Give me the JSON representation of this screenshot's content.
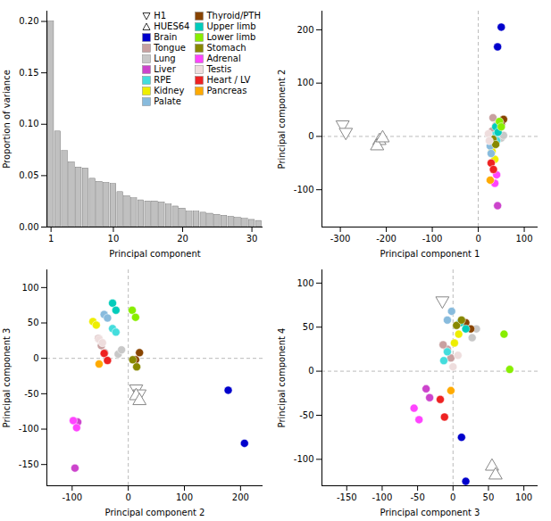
{
  "chart_data": [
    {
      "type": "bar",
      "x": [
        1,
        2,
        3,
        4,
        5,
        6,
        7,
        8,
        9,
        10,
        11,
        12,
        13,
        14,
        15,
        16,
        17,
        18,
        19,
        20,
        21,
        22,
        23,
        24,
        25,
        26,
        27,
        28,
        29,
        30,
        31
      ],
      "values": [
        0.2,
        0.093,
        0.074,
        0.063,
        0.058,
        0.057,
        0.047,
        0.044,
        0.043,
        0.042,
        0.034,
        0.03,
        0.028,
        0.026,
        0.025,
        0.025,
        0.024,
        0.022,
        0.02,
        0.018,
        0.015,
        0.015,
        0.014,
        0.013,
        0.012,
        0.011,
        0.01,
        0.009,
        0.008,
        0.007,
        0.006
      ],
      "color": "#c0c0c0",
      "xlabel": "Principal component",
      "ylabel": "Proportion of variance",
      "xlim": [
        0.4,
        31.6
      ],
      "ylim": [
        0,
        0.21
      ],
      "xticks": [
        1,
        10,
        20,
        30
      ],
      "yticks": [
        {
          "value": 0,
          "label": "0.00"
        },
        0.05,
        {
          "value": 0.1,
          "label": "0.10"
        },
        0.15,
        {
          "value": 0.2,
          "label": "0.20"
        }
      ],
      "legend": "upper right"
    },
    {
      "type": "scatter",
      "xlabel": "Principal component 1",
      "ylabel": "Principal component 2",
      "xlim": [
        -340,
        130
      ],
      "ylim": [
        -170,
        235
      ],
      "xticks": [
        -300,
        -200,
        -100,
        0,
        100
      ],
      "yticks": [
        -100,
        0,
        100,
        200
      ],
      "hlines": [
        0
      ],
      "vlines": [
        0
      ],
      "series": [
        {
          "name": "H1",
          "color": "#ffffff",
          "marker": "triangle-down",
          "values": [
            [
              -295,
              22
            ],
            [
              -288,
              8
            ]
          ]
        },
        {
          "name": "HUES64",
          "color": "#ffffff",
          "marker": "triangle-up",
          "values": [
            [
              -215,
              -8
            ],
            [
              -220,
              -18
            ],
            [
              -208,
              -3
            ]
          ]
        },
        {
          "name": "Brain",
          "color": "#0000cc",
          "marker": "circle",
          "values": [
            [
              50,
              205
            ],
            [
              42,
              168
            ]
          ]
        },
        {
          "name": "Tongue",
          "color": "#c8a0a0",
          "marker": "circle",
          "values": [
            [
              32,
              35
            ],
            [
              38,
              20
            ],
            [
              30,
              10
            ]
          ]
        },
        {
          "name": "Lung",
          "color": "#c8c8c8",
          "marker": "circle",
          "values": [
            [
              44,
              8
            ],
            [
              50,
              -3
            ],
            [
              55,
              2
            ]
          ]
        },
        {
          "name": "Liver",
          "color": "#cc44cc",
          "marker": "circle",
          "values": [
            [
              42,
              -130
            ]
          ]
        },
        {
          "name": "RPE",
          "color": "#44dddd",
          "marker": "circle",
          "values": [
            [
              35,
              2
            ],
            [
              40,
              -8
            ]
          ]
        },
        {
          "name": "Kidney",
          "color": "#eeee00",
          "marker": "circle",
          "values": [
            [
              30,
              -28
            ],
            [
              36,
              -43
            ]
          ]
        },
        {
          "name": "Palate",
          "color": "#88bbdd",
          "marker": "circle",
          "values": [
            [
              26,
              -18
            ],
            [
              28,
              -32
            ]
          ]
        },
        {
          "name": "Thyroid/PTH",
          "color": "#884400",
          "marker": "circle",
          "values": [
            [
              55,
              32
            ],
            [
              50,
              22
            ]
          ]
        },
        {
          "name": "Upper limb",
          "color": "#00ccbb",
          "marker": "circle",
          "values": [
            [
              38,
              18
            ],
            [
              43,
              8
            ]
          ]
        },
        {
          "name": "Lower limb",
          "color": "#88ee00",
          "marker": "circle",
          "values": [
            [
              46,
              28
            ],
            [
              50,
              18
            ]
          ]
        },
        {
          "name": "Stomach",
          "color": "#888800",
          "marker": "circle",
          "values": [
            [
              32,
              -5
            ],
            [
              38,
              -15
            ]
          ]
        },
        {
          "name": "Adrenal",
          "color": "#ff44ff",
          "marker": "circle",
          "values": [
            [
              40,
              -72
            ],
            [
              36,
              -88
            ]
          ]
        },
        {
          "name": "Testis",
          "color": "#eedddd",
          "marker": "circle",
          "values": [
            [
              22,
              5
            ],
            [
              24,
              -8
            ]
          ]
        },
        {
          "name": "Heart / LV",
          "color": "#ee2222",
          "marker": "circle",
          "values": [
            [
              28,
              -50
            ],
            [
              33,
              -62
            ]
          ]
        },
        {
          "name": "Pancreas",
          "color": "#ffaa00",
          "marker": "circle",
          "values": [
            [
              26,
              -82
            ]
          ]
        }
      ]
    },
    {
      "type": "scatter",
      "xlabel": "Principal component 2",
      "ylabel": "Principal component 3",
      "xlim": [
        -145,
        240
      ],
      "ylim": [
        -180,
        125
      ],
      "xticks": [
        -100,
        0,
        100,
        200
      ],
      "yticks": [
        -150,
        -100,
        -50,
        0,
        50,
        100
      ],
      "hlines": [
        0
      ],
      "vlines": [
        0
      ],
      "series": [
        {
          "name": "H1",
          "color": "#ffffff",
          "marker": "triangle-down",
          "values": [
            [
              14,
              -43
            ],
            [
              20,
              -50
            ]
          ]
        },
        {
          "name": "HUES64",
          "color": "#ffffff",
          "marker": "triangle-up",
          "values": [
            [
              14,
              -53
            ],
            [
              20,
              -60
            ]
          ]
        },
        {
          "name": "Brain",
          "color": "#0000cc",
          "marker": "circle",
          "values": [
            [
              178,
              -45
            ],
            [
              207,
              -120
            ]
          ]
        },
        {
          "name": "Tongue",
          "color": "#c8a0a0",
          "marker": "circle",
          "values": [
            [
              -48,
              18
            ],
            [
              -42,
              8
            ],
            [
              -53,
              28
            ]
          ]
        },
        {
          "name": "Lung",
          "color": "#c8c8c8",
          "marker": "circle",
          "values": [
            [
              -18,
              6
            ],
            [
              -12,
              12
            ]
          ]
        },
        {
          "name": "Liver",
          "color": "#cc44cc",
          "marker": "circle",
          "values": [
            [
              -90,
              -90
            ],
            [
              -95,
              -155
            ]
          ]
        },
        {
          "name": "RPE",
          "color": "#44dddd",
          "marker": "circle",
          "values": [
            [
              -28,
              42
            ],
            [
              -22,
              37
            ]
          ]
        },
        {
          "name": "Kidney",
          "color": "#eeee00",
          "marker": "circle",
          "values": [
            [
              -63,
              52
            ],
            [
              -57,
              47
            ]
          ]
        },
        {
          "name": "Palate",
          "color": "#88bbdd",
          "marker": "circle",
          "values": [
            [
              -43,
              62
            ],
            [
              -37,
              57
            ]
          ]
        },
        {
          "name": "Thyroid/PTH",
          "color": "#884400",
          "marker": "circle",
          "values": [
            [
              13,
              -2
            ],
            [
              20,
              8
            ]
          ]
        },
        {
          "name": "Upper limb",
          "color": "#00ccbb",
          "marker": "circle",
          "values": [
            [
              -28,
              78
            ],
            [
              -22,
              68
            ]
          ]
        },
        {
          "name": "Lower limb",
          "color": "#88ee00",
          "marker": "circle",
          "values": [
            [
              7,
              68
            ],
            [
              13,
              58
            ]
          ]
        },
        {
          "name": "Stomach",
          "color": "#888800",
          "marker": "circle",
          "values": [
            [
              8,
              -2
            ],
            [
              15,
              -12
            ]
          ]
        },
        {
          "name": "Adrenal",
          "color": "#ff44ff",
          "marker": "circle",
          "values": [
            [
              -98,
              -88
            ],
            [
              -92,
              -98
            ]
          ]
        },
        {
          "name": "Testis",
          "color": "#eedddd",
          "marker": "circle",
          "values": [
            [
              -52,
              27
            ],
            [
              -46,
              22
            ]
          ]
        },
        {
          "name": "Heart / LV",
          "color": "#ee2222",
          "marker": "circle",
          "values": [
            [
              -43,
              7
            ],
            [
              -37,
              -3
            ]
          ]
        },
        {
          "name": "Pancreas",
          "color": "#ffaa00",
          "marker": "circle",
          "values": [
            [
              -52,
              -8
            ]
          ]
        }
      ]
    },
    {
      "type": "scatter",
      "xlabel": "Principal component 3",
      "ylabel": "Principal component 4",
      "xlim": [
        -185,
        120
      ],
      "ylim": [
        -130,
        115
      ],
      "xticks": [
        -150,
        -100,
        -50,
        0,
        50,
        100
      ],
      "yticks": [
        -100,
        -50,
        0,
        50,
        100
      ],
      "hlines": [
        0
      ],
      "vlines": [
        0
      ],
      "series": [
        {
          "name": "H1",
          "color": "#ffffff",
          "marker": "triangle-down",
          "values": [
            [
              -15,
              80
            ]
          ]
        },
        {
          "name": "HUES64",
          "color": "#ffffff",
          "marker": "triangle-up",
          "values": [
            [
              55,
              -108
            ],
            [
              60,
              -118
            ]
          ]
        },
        {
          "name": "Brain",
          "color": "#0000cc",
          "marker": "circle",
          "values": [
            [
              12,
              -75
            ],
            [
              18,
              -125
            ]
          ]
        },
        {
          "name": "Tongue",
          "color": "#c8a0a0",
          "marker": "circle",
          "values": [
            [
              -8,
              25
            ],
            [
              -3,
              15
            ],
            [
              -14,
              30
            ]
          ]
        },
        {
          "name": "Lung",
          "color": "#c8c8c8",
          "marker": "circle",
          "values": [
            [
              27,
              38
            ],
            [
              33,
              48
            ]
          ]
        },
        {
          "name": "Liver",
          "color": "#cc44cc",
          "marker": "circle",
          "values": [
            [
              -33,
              -30
            ],
            [
              -38,
              -20
            ]
          ]
        },
        {
          "name": "RPE",
          "color": "#44dddd",
          "marker": "circle",
          "values": [
            [
              -13,
              12
            ],
            [
              -8,
              22
            ]
          ]
        },
        {
          "name": "Kidney",
          "color": "#eeee00",
          "marker": "circle",
          "values": [
            [
              2,
              32
            ],
            [
              8,
              42
            ]
          ]
        },
        {
          "name": "Palate",
          "color": "#88bbdd",
          "marker": "circle",
          "values": [
            [
              -8,
              58
            ],
            [
              -2,
              68
            ]
          ]
        },
        {
          "name": "Thyroid/PTH",
          "color": "#884400",
          "marker": "circle",
          "values": [
            [
              18,
              55
            ],
            [
              25,
              48
            ]
          ]
        },
        {
          "name": "Upper limb",
          "color": "#00ccbb",
          "marker": "circle",
          "values": [
            [
              10,
              55
            ],
            [
              18,
              48
            ]
          ]
        },
        {
          "name": "Lower limb",
          "color": "#88ee00",
          "marker": "circle",
          "values": [
            [
              72,
              42
            ],
            [
              80,
              2
            ]
          ]
        },
        {
          "name": "Stomach",
          "color": "#888800",
          "marker": "circle",
          "values": [
            [
              5,
              52
            ],
            [
              12,
              58
            ]
          ]
        },
        {
          "name": "Adrenal",
          "color": "#ff44ff",
          "marker": "circle",
          "values": [
            [
              -55,
              -42
            ],
            [
              -48,
              -55
            ]
          ]
        },
        {
          "name": "Testis",
          "color": "#eedddd",
          "marker": "circle",
          "values": [
            [
              0,
              5
            ],
            [
              7,
              18
            ]
          ]
        },
        {
          "name": "Heart / LV",
          "color": "#ee2222",
          "marker": "circle",
          "values": [
            [
              -18,
              -32
            ],
            [
              -12,
              -52
            ]
          ]
        },
        {
          "name": "Pancreas",
          "color": "#ffaa00",
          "marker": "circle",
          "values": [
            [
              -3,
              -22
            ]
          ]
        }
      ]
    }
  ]
}
